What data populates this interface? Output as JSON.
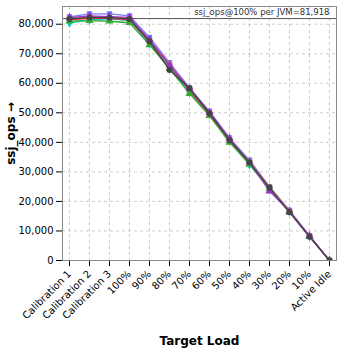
{
  "chart_data": {
    "type": "line",
    "x_label": "Target Load",
    "y_label": "ssj_ops",
    "categories": [
      "Calibration 1",
      "Calibration 2",
      "Calibration 3",
      "100%",
      "90%",
      "80%",
      "70%",
      "60%",
      "50%",
      "40%",
      "30%",
      "20%",
      "10%",
      "Active Idle"
    ],
    "series": [
      {
        "color": "#00c8c8",
        "marker": "diamond",
        "values": [
          80500,
          81500,
          81800,
          81200,
          73500,
          65500,
          57000,
          49500,
          41000,
          32500,
          24500,
          16500,
          8200,
          0
        ]
      },
      {
        "color": "#7777ff",
        "marker": "square",
        "values": [
          82500,
          83500,
          83500,
          82800,
          75500,
          67000,
          58500,
          50500,
          41500,
          34000,
          25000,
          17000,
          8400,
          0
        ]
      },
      {
        "color": "#ff9933",
        "marker": "square",
        "values": [
          82000,
          82500,
          82500,
          82000,
          74500,
          66500,
          58000,
          50000,
          41200,
          33500,
          24800,
          16700,
          8300,
          0
        ]
      },
      {
        "color": "#dd3333",
        "marker": "square",
        "values": [
          81500,
          82000,
          82000,
          81500,
          74000,
          66000,
          57500,
          49500,
          40800,
          33000,
          24500,
          16500,
          8200,
          0
        ]
      },
      {
        "color": "#33aa33",
        "marker": "triangle",
        "values": [
          81000,
          81200,
          81000,
          80500,
          73000,
          65000,
          56500,
          49000,
          40000,
          32500,
          24200,
          16300,
          8100,
          0
        ]
      },
      {
        "color": "#9933cc",
        "marker": "triangle",
        "values": [
          82200,
          82800,
          82600,
          82300,
          74800,
          66200,
          58200,
          50200,
          41300,
          33200,
          23500,
          16600,
          8300,
          0
        ]
      },
      {
        "color": "#444444",
        "marker": "circle",
        "values": [
          81800,
          82300,
          82200,
          81800,
          74200,
          64500,
          58300,
          49800,
          40700,
          33300,
          24700,
          16400,
          8000,
          0
        ]
      }
    ],
    "ylim": [
      0,
      86000
    ],
    "yticks": [
      0,
      {
        "value": 10000,
        "label": "10,000"
      },
      {
        "value": 20000,
        "label": "20,000"
      },
      {
        "value": 30000,
        "label": "30,000"
      },
      {
        "value": 40000,
        "label": "40,000"
      },
      {
        "value": 50000,
        "label": "50,000"
      },
      {
        "value": 60000,
        "label": "60,000"
      },
      {
        "value": 70000,
        "label": "70,000"
      },
      {
        "value": 80000,
        "label": "80,000"
      }
    ],
    "grid": true,
    "annotations": [
      {
        "text": "ssj_ops@100% per JVM=81,918",
        "y": 81918
      }
    ]
  }
}
